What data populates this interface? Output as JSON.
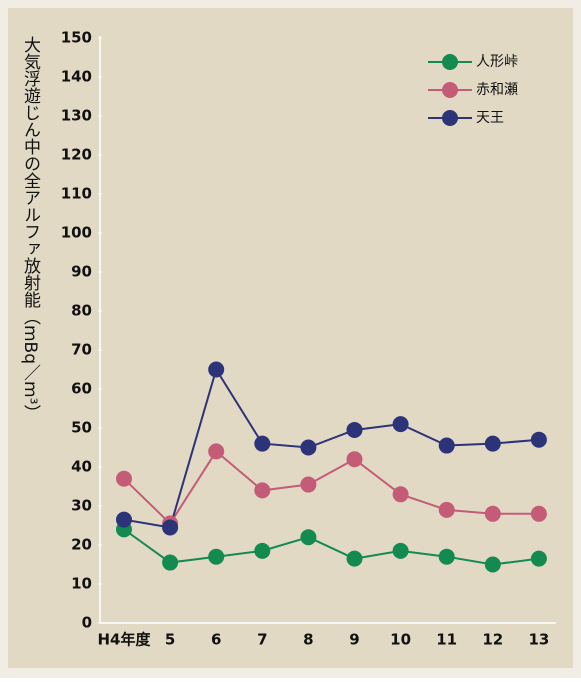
{
  "chart_data": {
    "type": "line",
    "y_label": "大気浮遊じん中の全アルファ放射能（mBq／m³）",
    "categories": [
      "H4年度",
      "5",
      "6",
      "7",
      "8",
      "9",
      "10",
      "11",
      "12",
      "13"
    ],
    "series": [
      {
        "name": "人形峠",
        "color": "#138a50",
        "values": [
          24,
          15.5,
          17,
          18.5,
          22,
          16.5,
          18.5,
          17,
          15,
          16.5
        ]
      },
      {
        "name": "赤和瀬",
        "color": "#c45c78",
        "values": [
          37,
          25.5,
          44,
          34,
          35.5,
          42,
          33,
          29,
          28,
          28
        ]
      },
      {
        "name": "天王",
        "color": "#2c3378",
        "values": [
          26.5,
          24.5,
          65,
          46,
          45,
          49.5,
          51,
          45.5,
          46,
          47
        ]
      }
    ],
    "ylim": [
      0,
      150
    ],
    "yticks": [
      0,
      10,
      20,
      30,
      40,
      50,
      60,
      70,
      80,
      90,
      100,
      110,
      120,
      130,
      140,
      150
    ],
    "legend": "upper right"
  }
}
